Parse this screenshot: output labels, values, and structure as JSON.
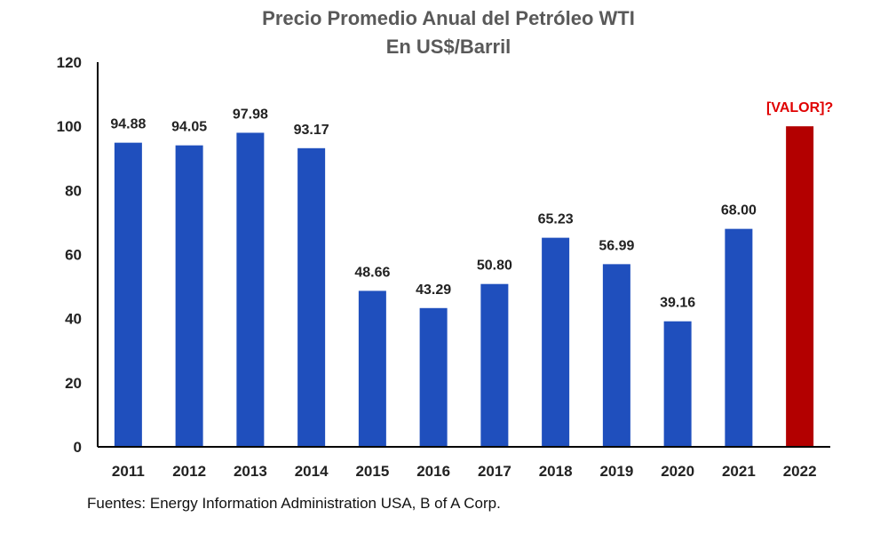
{
  "chart_data": {
    "type": "bar",
    "title": "Precio Promedio Anual del Petróleo WTI",
    "subtitle": "En US$/Barril",
    "categories": [
      "2011",
      "2012",
      "2013",
      "2014",
      "2015",
      "2016",
      "2017",
      "2018",
      "2019",
      "2020",
      "2021",
      "2022"
    ],
    "values": [
      94.88,
      94.05,
      97.98,
      93.17,
      48.66,
      43.29,
      50.8,
      65.23,
      56.99,
      39.16,
      68.0,
      100
    ],
    "data_labels": [
      "94.88",
      "94.05",
      "97.98",
      "93.17",
      "48.66",
      "43.29",
      "50.80",
      "65.23",
      "56.99",
      "39.16",
      "68.00",
      "[VALOR]?"
    ],
    "y_ticks": [
      0,
      20,
      40,
      60,
      80,
      100,
      120
    ],
    "ylim": [
      0,
      120
    ],
    "grid": false,
    "legend": "none",
    "colors": {
      "bar": "#1f4fbd",
      "highlight_bar": "#b30000",
      "highlight_label": "#e00000"
    },
    "highlight_index": 11
  },
  "footnote": "Fuentes: Energy Information Administration USA, B of A Corp."
}
